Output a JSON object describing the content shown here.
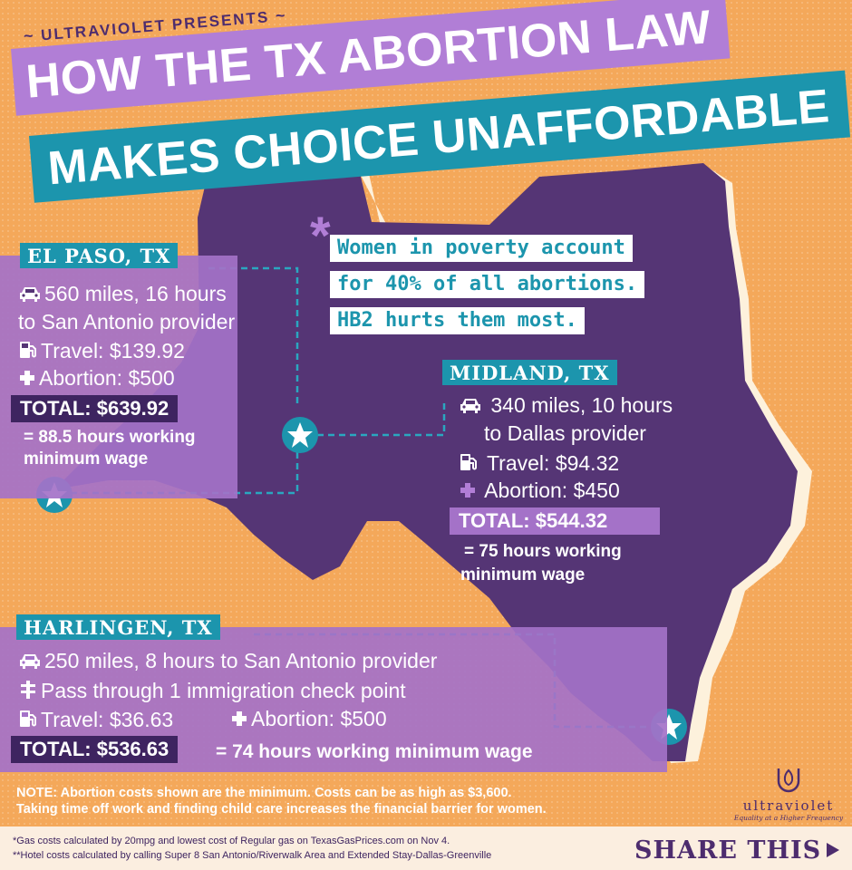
{
  "header": {
    "presents": "ULTRAVIOLET PRESENTS",
    "title_line1": "HOW THE TX ABORTION LAW",
    "title_line2": "MAKES CHOICE UNAFFORDABLE"
  },
  "quote": {
    "line1": "Women in poverty account",
    "line2": "for 40% of all abortions.",
    "line3": "HB2 hurts them most."
  },
  "el_paso": {
    "city": "EL PASO, TX",
    "distance_line1": "560 miles, 16 hours",
    "distance_line2": "to San Antonio provider",
    "travel": "Travel: $139.92",
    "abortion": "Abortion: $500",
    "total": "TOTAL: $639.92",
    "wage_line1": "= 88.5 hours working",
    "wage_line2": "minimum wage"
  },
  "midland": {
    "city": "MIDLAND, TX",
    "distance_line1": "340 miles, 10 hours",
    "distance_line2": "to Dallas provider",
    "travel": "Travel: $94.32",
    "abortion": "Abortion: $450",
    "total": "TOTAL: $544.32",
    "wage_line1": "= 75 hours working",
    "wage_line2": "minimum wage"
  },
  "harlingen": {
    "city": "HARLINGEN, TX",
    "distance": "250 miles, 8 hours to San Antonio provider",
    "checkpoint": "Pass through 1 immigration check point",
    "travel": "Travel: $36.63",
    "abortion": "Abortion: $500",
    "total": "TOTAL: $536.63",
    "wage": "= 74 hours working minimum wage"
  },
  "note": {
    "line1": "NOTE: Abortion costs shown are the minimum. Costs can be as high as $3,600.",
    "line2": "Taking time off work and finding child care increases the financial barrier for women."
  },
  "brand": {
    "name": "ultraviolet",
    "tagline": "Equality at a Higher Frequency"
  },
  "footer": {
    "footnote1": "*Gas costs calculated by 20mpg and lowest cost of Regular gas on TexasGasPrices.com on Nov 4.",
    "footnote2": "**Hotel costs calculated by calling Super 8 San Antonio/Riverwalk Area and Extended Stay-Dallas-Greenville",
    "share_label": "SHARE THIS"
  },
  "colors": {
    "background": "#f4a85a",
    "purple_dark": "#4d2c6e",
    "purple_light": "#a472c8",
    "teal": "#1c95ad"
  }
}
